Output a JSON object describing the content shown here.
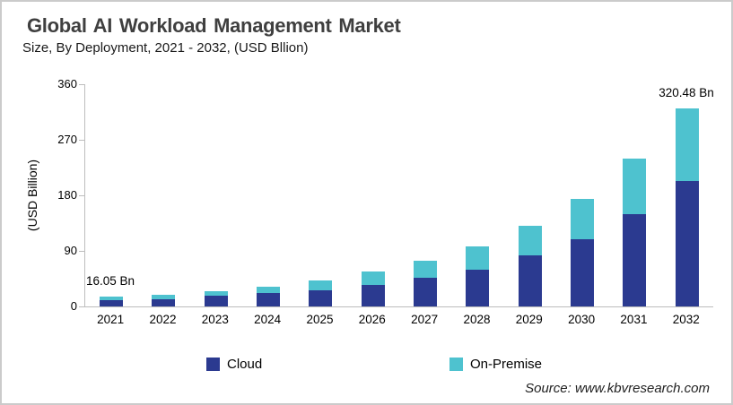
{
  "header": {
    "title": "Global AI Workload Management Market",
    "subtitle": "Size, By Deployment, 2021 - 2032, (USD Bllion)"
  },
  "chart_data": {
    "type": "bar",
    "stacked": true,
    "title": "Global AI Workload Management Market",
    "subtitle": "Size, By Deployment, 2021 - 2032, (USD Bllion)",
    "xlabel": "",
    "ylabel": "(USD Billion)",
    "ylim": [
      0,
      360
    ],
    "yticks": [
      0,
      90,
      180,
      270,
      360
    ],
    "grid": false,
    "legend_position": "bottom",
    "categories": [
      "2021",
      "2022",
      "2023",
      "2024",
      "2025",
      "2026",
      "2027",
      "2028",
      "2029",
      "2030",
      "2031",
      "2032"
    ],
    "series": [
      {
        "name": "Cloud",
        "color": "#2B3A90",
        "values": [
          10.2,
          12.2,
          16.9,
          21.8,
          26.6,
          35.3,
          46.0,
          59.0,
          82.3,
          108.9,
          149.0,
          203.0
        ]
      },
      {
        "name": "On-Premise",
        "color": "#4EC2CF",
        "values": [
          5.85,
          7.3,
          8.1,
          9.7,
          15.4,
          21.7,
          28.0,
          38.0,
          48.3,
          66.1,
          90.0,
          117.48
        ]
      }
    ],
    "totals": [
      16.05,
      19.5,
      25.0,
      31.5,
      42.0,
      57.0,
      74.0,
      97.0,
      130.6,
      175.0,
      239.0,
      320.48
    ],
    "annotations": [
      {
        "category_index": 0,
        "text": "16.05 Bn"
      },
      {
        "category_index": 11,
        "text": "320.48 Bn"
      }
    ]
  },
  "source": {
    "text": "Source: www.kbvresearch.com"
  }
}
